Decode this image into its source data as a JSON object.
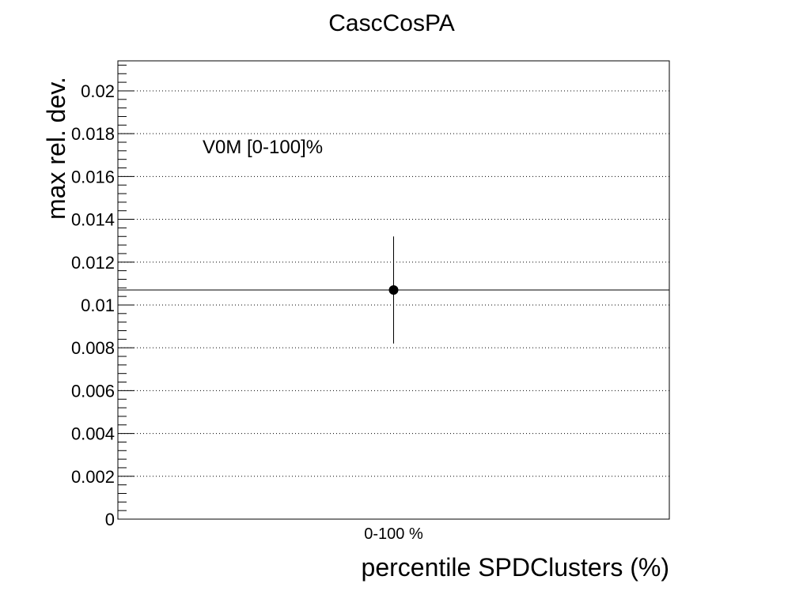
{
  "chart_data": {
    "type": "scatter",
    "title": "CascCosPA",
    "xlabel": "percentile SPDClusters (%)",
    "ylabel": "max rel. dev.",
    "annotation": "V0M [0-100]%",
    "categories": [
      "0-100 %"
    ],
    "series": [
      {
        "values": [
          0.0107
        ],
        "errors": [
          0.0025
        ]
      }
    ],
    "ylim": [
      0,
      0.0214
    ],
    "yticks": [
      {
        "value": 0,
        "label": "0"
      },
      {
        "value": 0.002,
        "label": "0.002"
      },
      {
        "value": 0.004,
        "label": "0.004"
      },
      {
        "value": 0.006,
        "label": "0.006"
      },
      {
        "value": 0.008,
        "label": "0.008"
      },
      {
        "value": 0.01,
        "label": "0.01"
      },
      {
        "value": 0.012,
        "label": "0.012"
      },
      {
        "value": 0.014,
        "label": "0.014"
      },
      {
        "value": 0.016,
        "label": "0.016"
      },
      {
        "value": 0.018,
        "label": "0.018"
      },
      {
        "value": 0.02,
        "label": "0.02"
      }
    ],
    "yminor_step": 0.0004,
    "grid": "horizontal-dotted",
    "legend": "none"
  }
}
